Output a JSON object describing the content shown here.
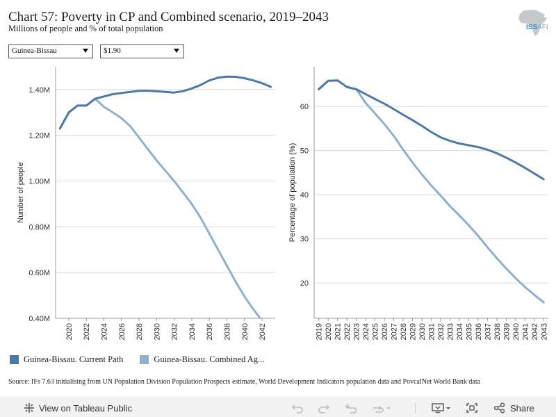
{
  "header": {
    "title": "Chart 57: Poverty in CP and Combined scenario, 2019–2043",
    "subtitle": "Millions of people and % of total population",
    "logo_text": "ISS",
    "logo_suffix": "AFI"
  },
  "filters": {
    "country": "Guinea-Bissau",
    "threshold": "$1.90"
  },
  "colors": {
    "current_path": "#4e79a7",
    "combined": "#8db0d1",
    "grid": "#d9d9d9",
    "axis": "#999999"
  },
  "chart_data": [
    {
      "type": "line",
      "title": "",
      "xlabel": "",
      "ylabel": "Number of people",
      "ylim": [
        0.4,
        1.5
      ],
      "xlim": [
        2018.5,
        2043.5
      ],
      "x_ticks": [
        2020,
        2022,
        2024,
        2026,
        2028,
        2030,
        2032,
        2034,
        2036,
        2038,
        2040,
        2042
      ],
      "y_ticks": [
        0.4,
        0.6,
        0.8,
        1.0,
        1.2,
        1.4
      ],
      "y_tick_labels": [
        "0.40M",
        "0.60M",
        "0.80M",
        "1.00M",
        "1.20M",
        "1.40M"
      ],
      "grid": true,
      "x": [
        2019,
        2020,
        2021,
        2022,
        2023,
        2024,
        2025,
        2026,
        2027,
        2028,
        2029,
        2030,
        2031,
        2032,
        2033,
        2034,
        2035,
        2036,
        2037,
        2038,
        2039,
        2040,
        2041,
        2042,
        2043
      ],
      "series": [
        {
          "name": "Guinea-Bissau. Current Path",
          "values": [
            1.23,
            1.3,
            1.33,
            1.33,
            1.36,
            1.37,
            1.38,
            1.385,
            1.39,
            1.395,
            1.395,
            1.393,
            1.39,
            1.387,
            1.393,
            1.405,
            1.42,
            1.44,
            1.452,
            1.457,
            1.456,
            1.45,
            1.44,
            1.428,
            1.412
          ]
        },
        {
          "name": "Guinea-Bissau. Combined Ag...",
          "values": [
            1.23,
            1.3,
            1.33,
            1.33,
            1.36,
            1.325,
            1.3,
            1.275,
            1.24,
            1.19,
            1.14,
            1.09,
            1.045,
            1.0,
            0.95,
            0.9,
            0.84,
            0.77,
            0.7,
            0.63,
            0.56,
            0.495,
            0.44,
            0.39,
            0.345
          ]
        }
      ]
    },
    {
      "type": "line",
      "title": "",
      "xlabel": "",
      "ylabel": "Percentage of population (%)",
      "ylim": [
        12,
        69
      ],
      "xlim": [
        2018.5,
        2043.5
      ],
      "x_ticks": [
        2019,
        2020,
        2021,
        2022,
        2023,
        2024,
        2025,
        2026,
        2027,
        2028,
        2029,
        2030,
        2031,
        2032,
        2033,
        2034,
        2035,
        2036,
        2037,
        2038,
        2039,
        2040,
        2041,
        2042,
        2043
      ],
      "y_ticks": [
        20,
        30,
        40,
        50,
        60
      ],
      "y_tick_labels": [
        "20",
        "30",
        "40",
        "50",
        "60"
      ],
      "grid": true,
      "x": [
        2019,
        2020,
        2021,
        2022,
        2023,
        2024,
        2025,
        2026,
        2027,
        2028,
        2029,
        2030,
        2031,
        2032,
        2033,
        2034,
        2035,
        2036,
        2037,
        2038,
        2039,
        2040,
        2041,
        2042,
        2043
      ],
      "series": [
        {
          "name": "Guinea-Bissau. Current Path",
          "values": [
            63.9,
            65.8,
            65.9,
            64.4,
            63.9,
            62.8,
            61.7,
            60.6,
            59.4,
            58.1,
            56.9,
            55.6,
            54.2,
            53.0,
            52.2,
            51.6,
            51.2,
            50.8,
            50.2,
            49.4,
            48.4,
            47.3,
            46.1,
            44.8,
            43.5
          ]
        },
        {
          "name": "Guinea-Bissau. Combined Ag...",
          "values": [
            63.9,
            65.8,
            65.9,
            64.4,
            63.9,
            60.8,
            58.4,
            56.0,
            53.3,
            50.2,
            47.3,
            44.6,
            42.1,
            39.8,
            37.4,
            35.3,
            33.1,
            30.7,
            28.1,
            25.6,
            23.3,
            21.1,
            19.1,
            17.3,
            15.6
          ]
        }
      ]
    }
  ],
  "legend": [
    {
      "label": "Guinea-Bissau. Current Path"
    },
    {
      "label": "Guinea-Bissau. Combined Ag..."
    }
  ],
  "source": "Source: IFs 7.63 initialising from UN Population Division Population Prospects estimate, World Development Indicators population data and PovcalNet World Bank data",
  "toolbar": {
    "view_label": "View on Tableau Public",
    "share_label": "Share"
  }
}
